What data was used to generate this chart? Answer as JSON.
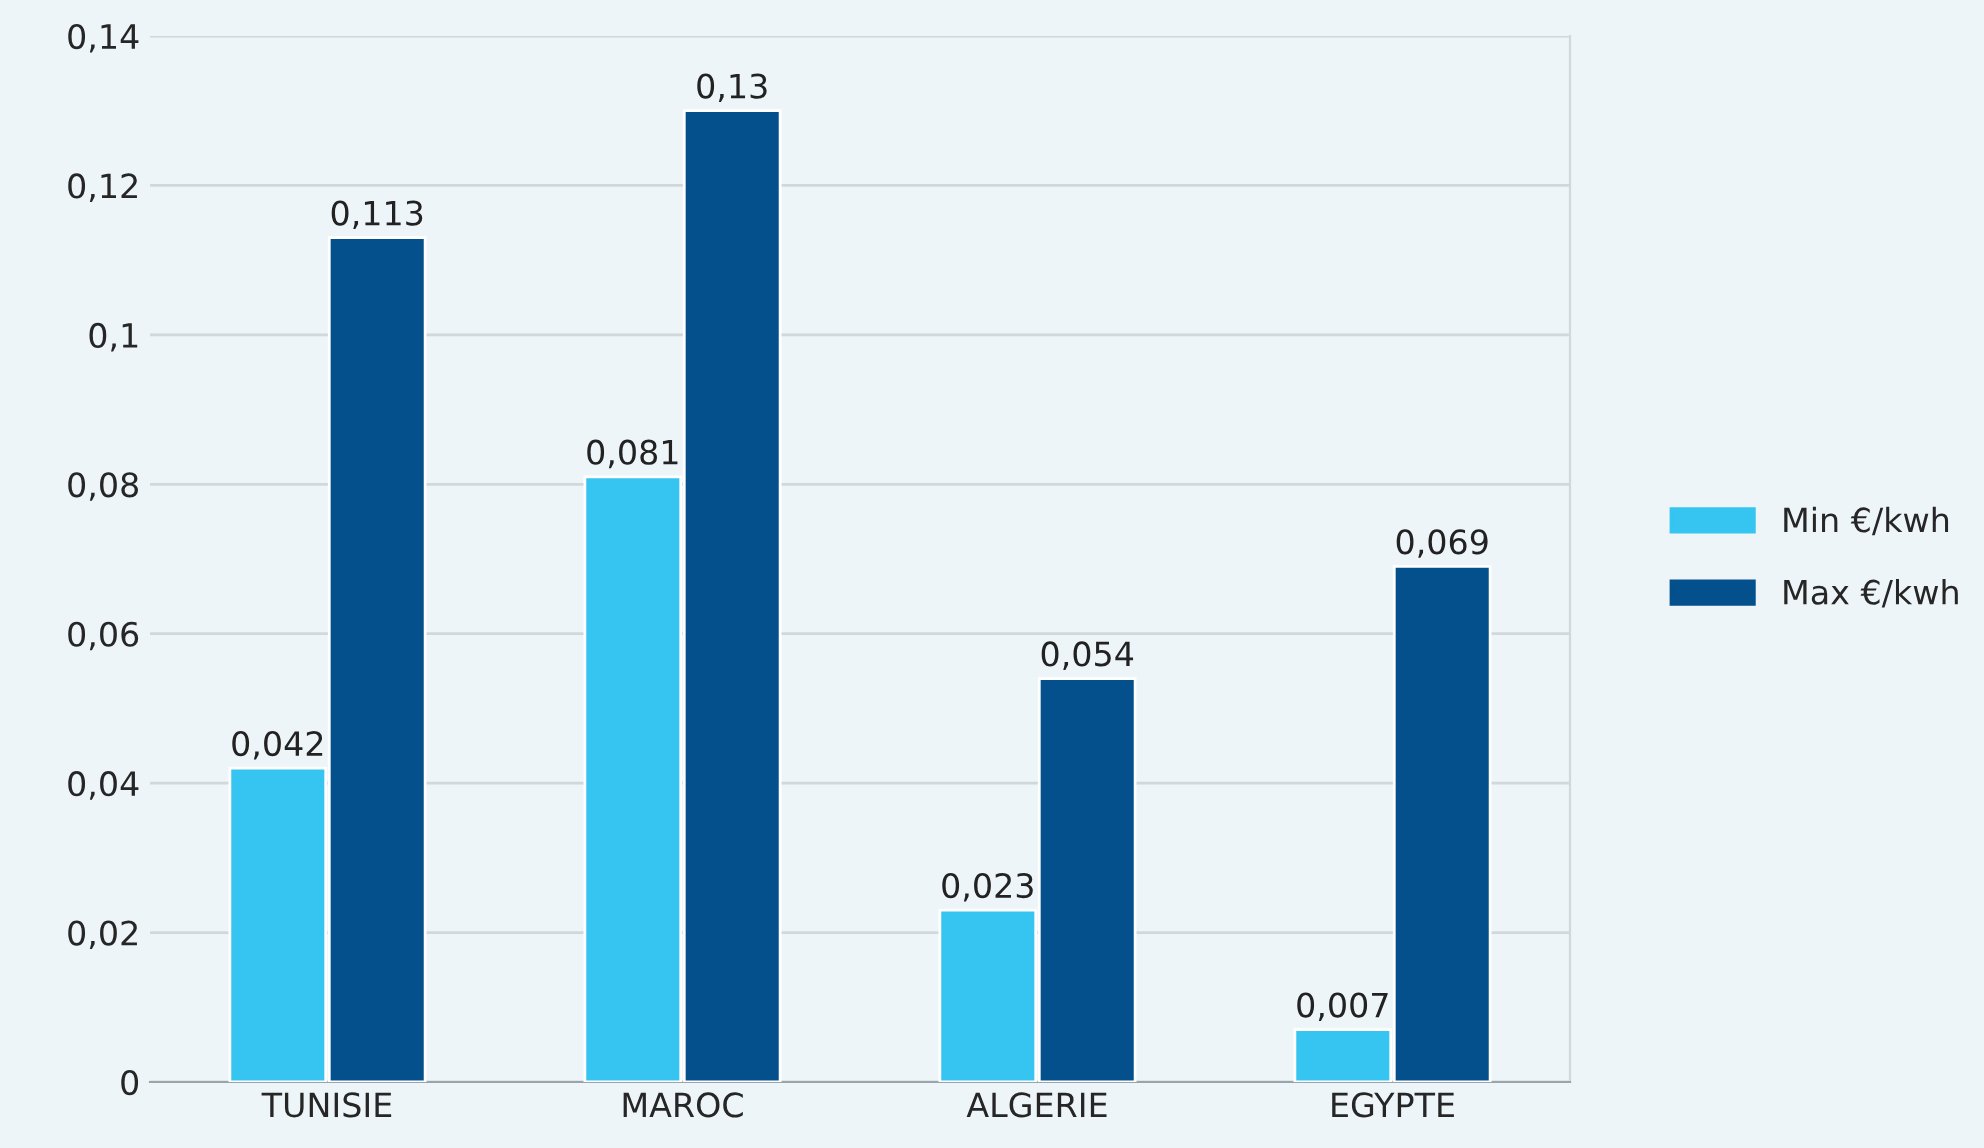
{
  "chart_data": {
    "type": "bar",
    "categories": [
      "TUNISIE",
      "MAROC",
      "ALGERIE",
      "EGYPTE"
    ],
    "series": [
      {
        "name": "Min €/kwh",
        "color": "#35c5f0",
        "values": [
          0.042,
          0.081,
          0.023,
          0.007
        ],
        "value_labels": [
          "0,042",
          "0,081",
          "0,023",
          "0,007"
        ]
      },
      {
        "name": "Max €/kwh",
        "color": "#03508c",
        "values": [
          0.113,
          0.13,
          0.054,
          0.069
        ],
        "value_labels": [
          "0,113",
          "0,13",
          "0,054",
          "0,069"
        ]
      }
    ],
    "ylim": [
      0,
      0.14
    ],
    "yticks": [
      0,
      {
        "value": 0.02,
        "label": "0,02"
      },
      {
        "value": 0.04,
        "label": "0,04"
      },
      {
        "value": 0.06,
        "label": "0,06"
      },
      {
        "value": 0.08,
        "label": "0,08"
      },
      {
        "value": 0.1,
        "label": "0,1"
      },
      {
        "value": 0.12,
        "label": "0,12"
      },
      {
        "value": 0.14,
        "label": "0,14"
      }
    ],
    "grid": "y",
    "legend": "right"
  }
}
